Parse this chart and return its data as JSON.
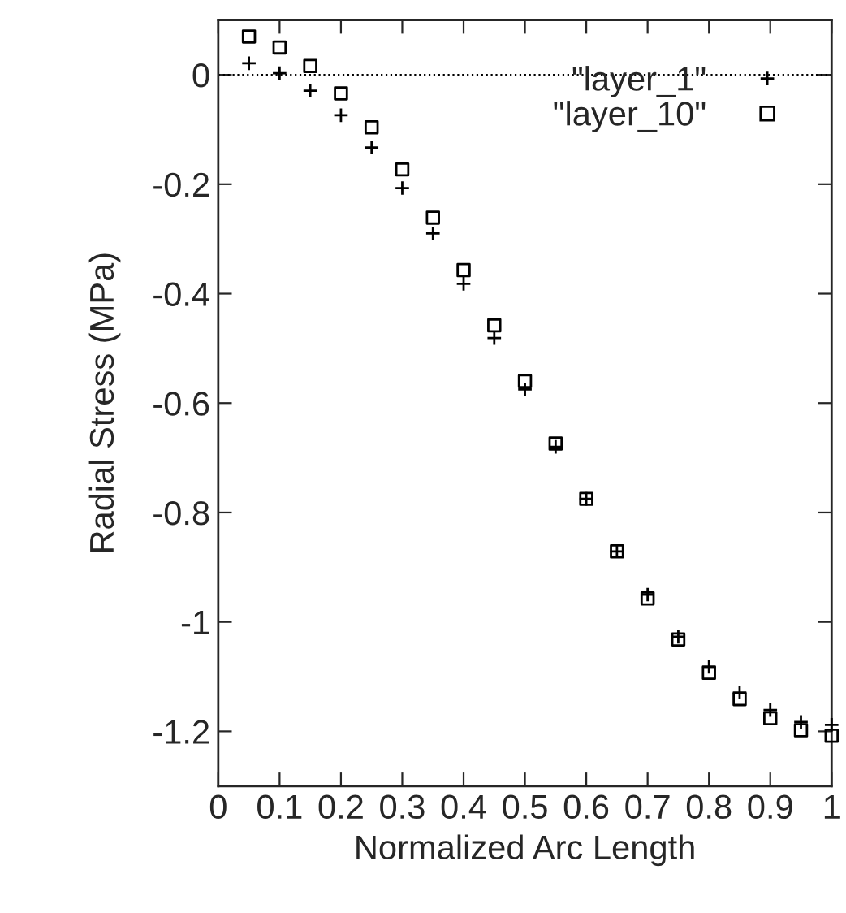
{
  "chart_data": {
    "type": "scatter",
    "xlabel": "Normalized Arc Length",
    "ylabel": "Radial Stress (MPa)",
    "x": [
      0.05,
      0.1,
      0.15,
      0.2,
      0.25,
      0.3,
      0.35,
      0.4,
      0.45,
      0.5,
      0.55,
      0.6,
      0.65,
      0.7,
      0.75,
      0.8,
      0.85,
      0.9,
      0.95,
      1.0
    ],
    "series": [
      {
        "name": "\"layer_1\"",
        "color": "#000000",
        "marker": "cross",
        "values": [
          0.021,
          0.003,
          -0.029,
          -0.074,
          -0.133,
          -0.207,
          -0.29,
          -0.382,
          -0.481,
          -0.575,
          -0.68,
          -0.775,
          -0.871,
          -0.95,
          -1.027,
          -1.082,
          -1.129,
          -1.161,
          -1.183,
          -1.188
        ]
      },
      {
        "name": "\"layer_10\"",
        "color": "#000000",
        "marker": "square",
        "values": [
          0.07,
          0.05,
          0.016,
          -0.034,
          -0.096,
          -0.173,
          -0.261,
          -0.357,
          -0.458,
          -0.56,
          -0.674,
          -0.775,
          -0.871,
          -0.957,
          -1.032,
          -1.093,
          -1.141,
          -1.176,
          -1.198,
          -1.208
        ]
      }
    ],
    "xlim": [
      0,
      1
    ],
    "xticks": [
      0,
      0.1,
      0.2,
      0.3,
      0.4,
      0.5,
      0.6,
      0.7,
      0.8,
      0.9,
      1
    ],
    "ylim": [
      -1.3,
      0.1
    ],
    "yticks": [
      {
        "value": 0,
        "label": "0"
      },
      -0.2,
      -0.4,
      -0.6,
      -0.8,
      {
        "value": -1,
        "label": "-1"
      },
      -1.2
    ],
    "ref_lines": [
      {
        "axis": "y",
        "value": 0,
        "line_style": "dotted",
        "color": "#000000"
      }
    ],
    "legend": "top right",
    "grid": false
  }
}
